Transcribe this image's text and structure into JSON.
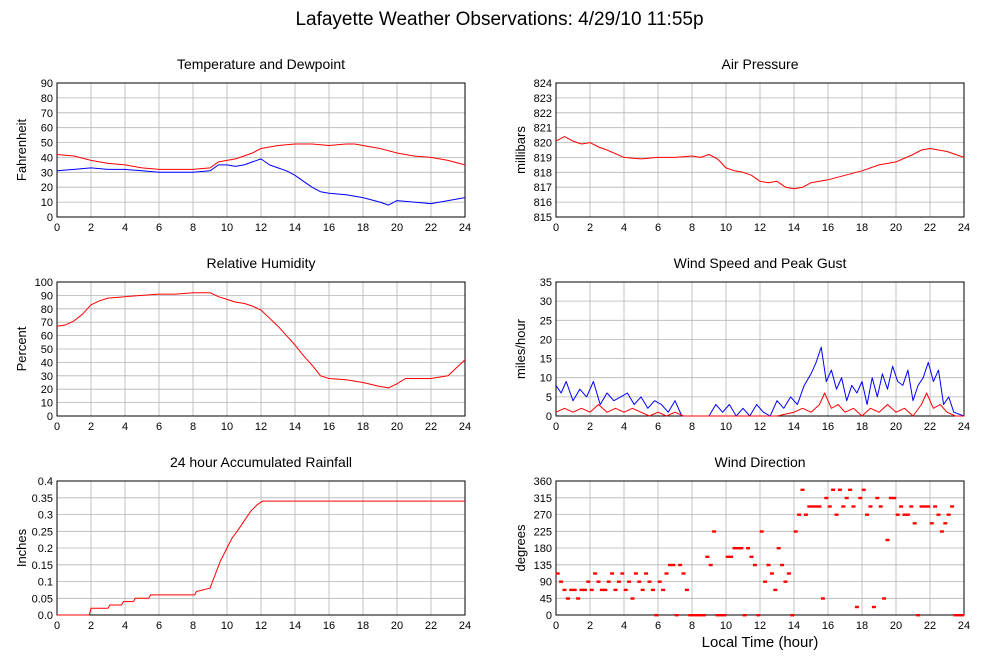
{
  "title": "Lafayette Weather Observations: 4/29/10 11:55p",
  "x_axis_label": "Local Time (hour)",
  "colors": {
    "red": "#ff0000",
    "blue": "#0000ff",
    "grid": "#b4b4b4"
  },
  "chart_data": [
    {
      "id": "temperature",
      "type": "line",
      "title": "Temperature and Dewpoint",
      "xlabel": "",
      "ylabel": "Fahrenheit",
      "xlim": [
        0,
        24
      ],
      "ylim": [
        0,
        90
      ],
      "xticks": [
        0,
        2,
        4,
        6,
        8,
        10,
        12,
        14,
        16,
        18,
        20,
        22,
        24
      ],
      "yticks": [
        0,
        10,
        20,
        30,
        40,
        50,
        60,
        70,
        80,
        90
      ],
      "yticklabels": [
        "0",
        "10",
        "20",
        "30",
        "40",
        "50",
        "60",
        "70",
        "80",
        "90"
      ],
      "grid": true,
      "series": [
        {
          "color": "#ff0000",
          "x": [
            0,
            1,
            2,
            3,
            4,
            5,
            6,
            7,
            8,
            9,
            9.5,
            10,
            10.5,
            11,
            11.5,
            12,
            12.5,
            13,
            14,
            15,
            16,
            17,
            17.5,
            18,
            19,
            20,
            21,
            22,
            23,
            24
          ],
          "y": [
            42,
            41,
            38,
            36,
            35,
            33,
            32,
            32,
            32,
            33,
            37,
            38,
            39,
            41,
            43,
            46,
            47,
            48,
            49,
            49,
            48,
            49,
            49,
            48,
            46,
            43,
            41,
            40,
            38,
            35
          ]
        },
        {
          "color": "#0000ff",
          "x": [
            0,
            1,
            2,
            3,
            4,
            5,
            6,
            7,
            8,
            9,
            9.5,
            10,
            10.5,
            11,
            11.5,
            12,
            12.5,
            13,
            13.5,
            14,
            14.5,
            15,
            15.5,
            16,
            17,
            18,
            19,
            19.5,
            20,
            21,
            22,
            23,
            24
          ],
          "y": [
            31,
            32,
            33,
            32,
            32,
            31,
            30,
            30,
            30,
            31,
            35,
            35,
            34,
            35,
            37,
            39,
            35,
            33,
            31,
            28,
            24,
            20,
            17,
            16,
            15,
            13,
            10,
            8,
            11,
            10,
            9,
            11,
            13
          ]
        }
      ]
    },
    {
      "id": "pressure",
      "type": "line",
      "title": "Air Pressure",
      "xlabel": "",
      "ylabel": "millibars",
      "xlim": [
        0,
        24
      ],
      "ylim": [
        815,
        824
      ],
      "xticks": [
        0,
        2,
        4,
        6,
        8,
        10,
        12,
        14,
        16,
        18,
        20,
        22,
        24
      ],
      "yticks": [
        815,
        816,
        817,
        818,
        819,
        820,
        821,
        822,
        823,
        824
      ],
      "yticklabels": [
        "815",
        "816",
        "817",
        "818",
        "819",
        "820",
        "821",
        "822",
        "823",
        "824"
      ],
      "grid": true,
      "series": [
        {
          "color": "#ff0000",
          "x": [
            0,
            0.5,
            1,
            1.5,
            2,
            2.5,
            3,
            4,
            5,
            6,
            7,
            8,
            8.5,
            9,
            9.5,
            10,
            10.5,
            11,
            11.5,
            12,
            12.5,
            13,
            13.5,
            14,
            14.5,
            15,
            16,
            17,
            18,
            19,
            20,
            21,
            21.5,
            22,
            22.5,
            23,
            24
          ],
          "y": [
            820.1,
            820.4,
            820.1,
            819.9,
            820.0,
            819.7,
            819.5,
            819.0,
            818.9,
            819.0,
            819.0,
            819.1,
            819.0,
            819.2,
            818.9,
            818.3,
            818.1,
            818.0,
            817.8,
            817.4,
            817.3,
            817.4,
            817.0,
            816.9,
            817.0,
            817.3,
            817.5,
            817.8,
            818.1,
            818.5,
            818.7,
            819.2,
            819.5,
            819.6,
            819.5,
            819.4,
            819.0
          ]
        }
      ]
    },
    {
      "id": "humidity",
      "type": "line",
      "title": "Relative Humidity",
      "xlabel": "",
      "ylabel": "Percent",
      "xlim": [
        0,
        24
      ],
      "ylim": [
        0,
        100
      ],
      "xticks": [
        0,
        2,
        4,
        6,
        8,
        10,
        12,
        14,
        16,
        18,
        20,
        22,
        24
      ],
      "yticks": [
        0,
        10,
        20,
        30,
        40,
        50,
        60,
        70,
        80,
        90,
        100
      ],
      "yticklabels": [
        "0",
        "10",
        "20",
        "30",
        "40",
        "50",
        "60",
        "70",
        "80",
        "90",
        "100"
      ],
      "grid": true,
      "series": [
        {
          "color": "#ff0000",
          "x": [
            0,
            0.5,
            1,
            1.5,
            2,
            2.5,
            3,
            4,
            5,
            6,
            7,
            8,
            9,
            9.5,
            10,
            10.5,
            11,
            11.5,
            12,
            12.5,
            13,
            13.5,
            14,
            14.5,
            15,
            15.5,
            16,
            17,
            18,
            19,
            19.5,
            20,
            20.5,
            21,
            22,
            23,
            24
          ],
          "y": [
            67,
            68,
            71,
            76,
            83,
            86,
            88,
            89,
            90,
            91,
            91,
            92,
            92,
            89,
            87,
            85,
            84,
            82,
            79,
            73,
            67,
            60,
            53,
            45,
            38,
            30,
            28,
            27,
            25,
            22,
            21,
            24,
            28,
            28,
            28,
            30,
            42
          ]
        },
        {
          "color": "#0000ff",
          "x": [],
          "y": []
        }
      ]
    },
    {
      "id": "wind_speed",
      "type": "line",
      "title": "Wind Speed and Peak Gust",
      "xlabel": "",
      "ylabel": "miles/hour",
      "xlim": [
        0,
        24
      ],
      "ylim": [
        0,
        35
      ],
      "xticks": [
        0,
        2,
        4,
        6,
        8,
        10,
        12,
        14,
        16,
        18,
        20,
        22,
        24
      ],
      "yticks": [
        0,
        5,
        10,
        15,
        20,
        25,
        30,
        35
      ],
      "yticklabels": [
        "0",
        "5",
        "10",
        "15",
        "20",
        "25",
        "30",
        "35"
      ],
      "grid": true,
      "series": [
        {
          "color": "#0000ff",
          "x": [
            0,
            0.3,
            0.6,
            1,
            1.4,
            1.8,
            2.2,
            2.6,
            3,
            3.4,
            3.8,
            4.2,
            4.6,
            5,
            5.4,
            5.8,
            6.2,
            6.6,
            7,
            7.4,
            7.8,
            8.2,
            8.6,
            9,
            9.4,
            9.8,
            10.2,
            10.6,
            11,
            11.4,
            11.8,
            12.2,
            12.6,
            13,
            13.4,
            13.8,
            14.2,
            14.6,
            15,
            15.3,
            15.6,
            15.9,
            16.2,
            16.5,
            16.8,
            17.1,
            17.4,
            17.7,
            18,
            18.3,
            18.6,
            18.9,
            19.2,
            19.5,
            19.8,
            20.1,
            20.4,
            20.7,
            21,
            21.3,
            21.6,
            21.9,
            22.2,
            22.5,
            22.8,
            23.1,
            23.4,
            24
          ],
          "y": [
            8,
            6,
            9,
            4,
            7,
            5,
            9,
            3,
            6,
            4,
            5,
            6,
            3,
            5,
            2,
            4,
            3,
            1,
            4,
            0,
            0,
            0,
            0,
            0,
            3,
            1,
            3,
            0,
            2,
            0,
            3,
            1,
            0,
            4,
            2,
            5,
            3,
            8,
            11,
            14,
            18,
            9,
            12,
            7,
            10,
            4,
            8,
            6,
            9,
            3,
            10,
            5,
            11,
            7,
            13,
            9,
            8,
            12,
            4,
            8,
            10,
            14,
            9,
            12,
            3,
            5,
            1,
            0
          ]
        },
        {
          "color": "#ff0000",
          "x": [
            0,
            0.5,
            1,
            1.5,
            2,
            2.5,
            3,
            3.5,
            4,
            4.5,
            5,
            5.5,
            6,
            6.5,
            7,
            7.5,
            8,
            9,
            10,
            11,
            12,
            13,
            14,
            14.5,
            15,
            15.5,
            15.8,
            16.2,
            16.6,
            17,
            17.5,
            18,
            18.5,
            19,
            19.5,
            20,
            20.5,
            21,
            21.5,
            21.8,
            22.2,
            22.6,
            23,
            23.5,
            24
          ],
          "y": [
            1,
            2,
            1,
            2,
            1,
            3,
            1,
            2,
            1,
            2,
            1,
            0,
            1,
            0,
            1,
            0,
            0,
            0,
            0,
            0,
            0,
            0,
            1,
            2,
            1,
            3,
            6,
            2,
            3,
            1,
            2,
            0,
            2,
            1,
            3,
            1,
            2,
            0,
            3,
            6,
            2,
            3,
            1,
            0,
            0
          ]
        }
      ]
    },
    {
      "id": "rainfall",
      "type": "line",
      "title": "24 hour Accumulated Rainfall",
      "xlabel": "",
      "ylabel": "Inches",
      "xlim": [
        0,
        24
      ],
      "ylim": [
        0,
        0.4
      ],
      "xticks": [
        0,
        2,
        4,
        6,
        8,
        10,
        12,
        14,
        16,
        18,
        20,
        22,
        24
      ],
      "yticks": [
        0,
        0.05,
        0.1,
        0.15,
        0.2,
        0.25,
        0.3,
        0.35,
        0.4
      ],
      "yticklabels": [
        "0.0",
        "0.05",
        "0.1",
        "0.15",
        "0.2",
        "0.25",
        "0.3",
        "0.35",
        "0.4"
      ],
      "grid": true,
      "series": [
        {
          "color": "#ff0000",
          "x": [
            0,
            1.9,
            2,
            3,
            3.1,
            3.8,
            3.9,
            4.5,
            4.6,
            5.4,
            5.5,
            8.1,
            8.2,
            9,
            9.3,
            9.6,
            10,
            10.3,
            10.6,
            11,
            11.4,
            11.8,
            12.1,
            24
          ],
          "y": [
            0,
            0,
            0.02,
            0.02,
            0.03,
            0.03,
            0.04,
            0.04,
            0.05,
            0.05,
            0.06,
            0.06,
            0.07,
            0.08,
            0.12,
            0.16,
            0.2,
            0.23,
            0.25,
            0.28,
            0.31,
            0.33,
            0.34,
            0.34
          ]
        }
      ]
    },
    {
      "id": "wind_direction",
      "type": "scatter",
      "title": "Wind Direction",
      "xlabel": "Local Time (hour)",
      "ylabel": "degrees",
      "xlim": [
        0,
        24
      ],
      "ylim": [
        0,
        360
      ],
      "xticks": [
        0,
        2,
        4,
        6,
        8,
        10,
        12,
        14,
        16,
        18,
        20,
        22,
        24
      ],
      "yticks": [
        0,
        45,
        90,
        135,
        180,
        225,
        270,
        315,
        360
      ],
      "yticklabels": [
        "0",
        "45",
        "90",
        "135",
        "180",
        "225",
        "270",
        "315",
        "360"
      ],
      "grid": true,
      "series": [
        {
          "color": "#ff0000",
          "x": [
            0.1,
            0.3,
            0.5,
            0.7,
            0.9,
            1.1,
            1.3,
            1.5,
            1.7,
            1.9,
            2.1,
            2.3,
            2.5,
            2.7,
            2.9,
            3.1,
            3.3,
            3.5,
            3.7,
            3.9,
            4.1,
            4.3,
            4.5,
            4.7,
            4.9,
            5.1,
            5.3,
            5.5,
            5.7,
            5.9,
            6.1,
            6.3,
            6.5,
            6.7,
            6.9,
            7.1,
            7.3,
            7.5,
            7.7,
            7.9,
            8.1,
            8.3,
            8.5,
            8.7,
            8.9,
            9.1,
            9.3,
            9.5,
            9.7,
            9.9,
            10.1,
            10.3,
            10.5,
            10.7,
            10.9,
            11.1,
            11.3,
            11.5,
            11.7,
            11.9,
            12.1,
            12.3,
            12.5,
            12.7,
            12.9,
            13.1,
            13.3,
            13.5,
            13.7,
            13.9,
            14.1,
            14.3,
            14.5,
            14.7,
            14.9,
            15.1,
            15.3,
            15.5,
            15.7,
            15.9,
            16.1,
            16.3,
            16.5,
            16.7,
            16.9,
            17.1,
            17.3,
            17.5,
            17.7,
            17.9,
            18.1,
            18.3,
            18.5,
            18.7,
            18.9,
            19.1,
            19.3,
            19.5,
            19.7,
            19.9,
            20.1,
            20.3,
            20.5,
            20.7,
            20.9,
            21.1,
            21.3,
            21.5,
            21.7,
            21.9,
            22.1,
            22.3,
            22.5,
            22.7,
            22.9,
            23.1,
            23.3,
            23.5,
            23.7,
            23.9
          ],
          "y": [
            112,
            90,
            68,
            45,
            68,
            68,
            45,
            68,
            68,
            90,
            68,
            112,
            90,
            68,
            68,
            90,
            112,
            68,
            90,
            112,
            68,
            90,
            45,
            112,
            90,
            68,
            112,
            90,
            68,
            0,
            90,
            68,
            112,
            135,
            135,
            0,
            135,
            112,
            68,
            0,
            0,
            0,
            0,
            0,
            157,
            135,
            225,
            0,
            0,
            0,
            157,
            157,
            180,
            180,
            180,
            0,
            180,
            157,
            135,
            0,
            225,
            90,
            135,
            112,
            68,
            180,
            135,
            90,
            112,
            0,
            225,
            270,
            337,
            270,
            292,
            292,
            292,
            292,
            45,
            315,
            292,
            337,
            270,
            337,
            292,
            315,
            337,
            292,
            22,
            315,
            337,
            270,
            292,
            22,
            315,
            292,
            45,
            202,
            315,
            315,
            270,
            292,
            270,
            270,
            292,
            247,
            0,
            292,
            292,
            292,
            247,
            292,
            270,
            225,
            247,
            270,
            292,
            0,
            0,
            0
          ]
        }
      ]
    }
  ]
}
